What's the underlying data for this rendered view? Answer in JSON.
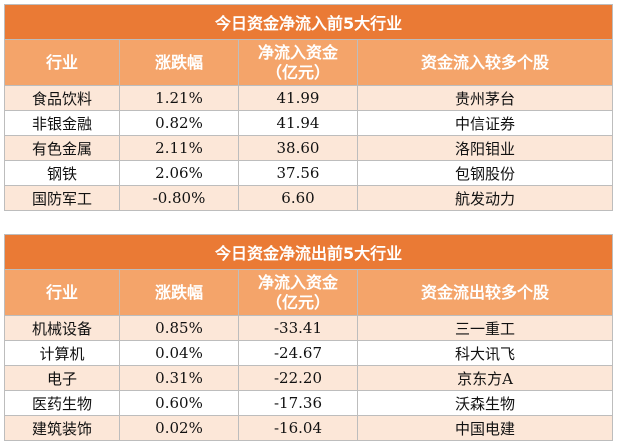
{
  "inflow": {
    "title": "今日资金净流入前5大行业",
    "headers": [
      "行业",
      "涨跌幅",
      "净流入资金\n（亿元）",
      "资金流入较多个股"
    ],
    "rows": [
      {
        "industry": "食品饮料",
        "change": "1.21%",
        "amount": "41.99",
        "stock": "贵州茅台"
      },
      {
        "industry": "非银金融",
        "change": "0.82%",
        "amount": "41.94",
        "stock": "中信证券"
      },
      {
        "industry": "有色金属",
        "change": "2.11%",
        "amount": "38.60",
        "stock": "洛阳钼业"
      },
      {
        "industry": "钢铁",
        "change": "2.06%",
        "amount": "37.56",
        "stock": "包钢股份"
      },
      {
        "industry": "国防军工",
        "change": "-0.80%",
        "amount": "6.60",
        "stock": "航发动力"
      }
    ]
  },
  "outflow": {
    "title": "今日资金净流出前5大行业",
    "headers": [
      "行业",
      "涨跌幅",
      "净流入资金\n（亿元）",
      "资金流出较多个股"
    ],
    "rows": [
      {
        "industry": "机械设备",
        "change": "0.85%",
        "amount": "-33.41",
        "stock": "三一重工"
      },
      {
        "industry": "计算机",
        "change": "0.04%",
        "amount": "-24.67",
        "stock": "科大讯飞"
      },
      {
        "industry": "电子",
        "change": "0.31%",
        "amount": "-22.20",
        "stock": "京东方A"
      },
      {
        "industry": "医药生物",
        "change": "0.60%",
        "amount": "-17.36",
        "stock": "沃森生物"
      },
      {
        "industry": "建筑装饰",
        "change": "0.02%",
        "amount": "-16.04",
        "stock": "中国电建"
      }
    ]
  }
}
